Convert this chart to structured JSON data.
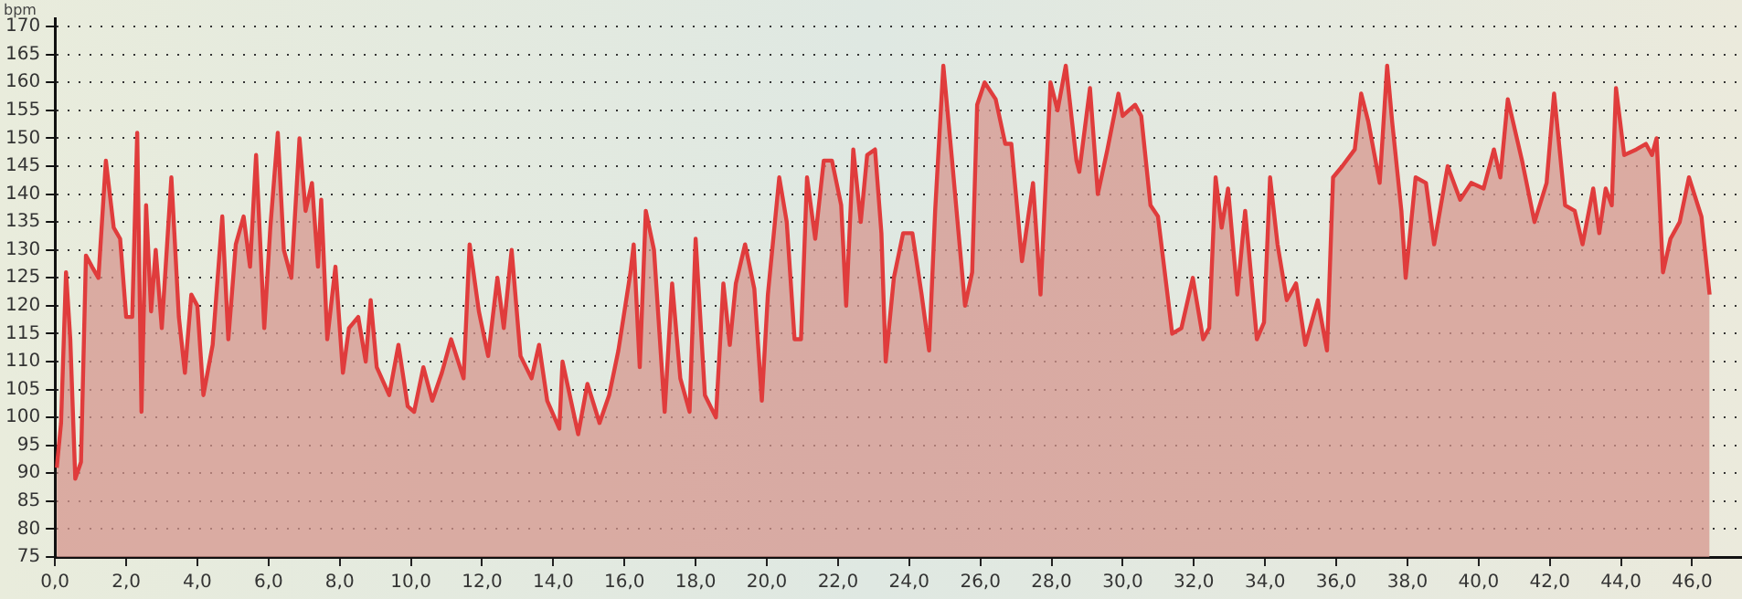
{
  "chart_data": {
    "type": "area",
    "ylabel": "bpm",
    "x": [
      0.05,
      0.17,
      0.31,
      0.43,
      0.57,
      0.73,
      0.87,
      1.04,
      1.22,
      1.43,
      1.65,
      1.83,
      2.0,
      2.17,
      2.31,
      2.43,
      2.56,
      2.7,
      2.83,
      3.0,
      3.27,
      3.48,
      3.65,
      3.83,
      4.0,
      4.17,
      4.43,
      4.7,
      4.87,
      5.08,
      5.3,
      5.48,
      5.65,
      5.88,
      6.05,
      6.26,
      6.43,
      6.64,
      6.87,
      7.04,
      7.22,
      7.39,
      7.48,
      7.65,
      7.88,
      8.09,
      8.26,
      8.52,
      8.73,
      8.87,
      9.04,
      9.39,
      9.65,
      9.91,
      10.09,
      10.35,
      10.6,
      10.87,
      11.13,
      11.48,
      11.65,
      11.91,
      12.17,
      12.43,
      12.61,
      12.83,
      13.08,
      13.39,
      13.6,
      13.83,
      14.17,
      14.26,
      14.7,
      14.96,
      15.3,
      15.57,
      15.83,
      16.17,
      16.26,
      16.43,
      16.6,
      16.83,
      17.13,
      17.34,
      17.57,
      17.83,
      18.0,
      18.26,
      18.57,
      18.78,
      18.96,
      19.13,
      19.39,
      19.65,
      19.86,
      20.03,
      20.35,
      20.56,
      20.78,
      20.96,
      21.13,
      21.36,
      21.6,
      21.83,
      22.09,
      22.23,
      22.43,
      22.64,
      22.82,
      23.04,
      23.22,
      23.34,
      23.57,
      23.83,
      24.09,
      24.35,
      24.56,
      24.73,
      24.96,
      25.22,
      25.57,
      25.77,
      25.91,
      26.12,
      26.43,
      26.7,
      26.87,
      27.17,
      27.48,
      27.69,
      27.97,
      28.17,
      28.4,
      28.7,
      28.78,
      29.08,
      29.3,
      29.57,
      29.88,
      30.0,
      30.17,
      30.35,
      30.52,
      30.78,
      30.99,
      31.22,
      31.39,
      31.65,
      31.97,
      32.26,
      32.43,
      32.61,
      32.78,
      32.96,
      33.22,
      33.44,
      33.77,
      33.97,
      34.14,
      34.35,
      34.61,
      34.87,
      35.13,
      35.48,
      35.74,
      35.91,
      36.17,
      36.52,
      36.7,
      36.9,
      37.22,
      37.43,
      37.57,
      37.83,
      37.95,
      38.23,
      38.52,
      38.75,
      39.13,
      39.48,
      39.79,
      40.14,
      40.43,
      40.61,
      40.82,
      41.22,
      41.57,
      41.91,
      42.12,
      42.43,
      42.7,
      42.92,
      43.22,
      43.39,
      43.57,
      43.74,
      43.86,
      44.09,
      44.43,
      44.7,
      44.87,
      45.0,
      45.18,
      45.39,
      45.65,
      45.91,
      46.26,
      46.49
    ],
    "series": [
      {
        "color": "#e03c3c",
        "values": [
          91,
          99,
          126,
          114,
          89,
          92,
          129,
          127,
          125,
          146,
          134,
          132,
          118,
          118,
          151,
          101,
          138,
          119,
          130,
          116,
          143,
          118,
          108,
          122,
          120,
          104,
          113,
          136,
          114,
          131,
          136,
          127,
          147,
          116,
          134,
          151,
          130,
          125,
          150,
          137,
          142,
          127,
          139,
          114,
          127,
          108,
          116,
          118,
          110,
          121,
          109,
          104,
          113,
          102,
          101,
          109,
          103,
          108,
          114,
          107,
          131,
          119,
          111,
          125,
          116,
          130,
          111,
          107,
          113,
          103,
          98,
          110,
          97,
          106,
          99,
          104,
          112,
          126,
          131,
          109,
          137,
          130,
          101,
          124,
          107,
          101,
          132,
          104,
          100,
          124,
          113,
          124,
          131,
          123,
          103,
          122,
          143,
          135,
          114,
          114,
          143,
          132,
          146,
          146,
          138,
          120,
          148,
          135,
          147,
          148,
          133,
          110,
          125,
          133,
          133,
          122,
          112,
          137,
          163,
          145,
          120,
          126,
          156,
          160,
          157,
          149,
          149,
          128,
          142,
          122,
          160,
          155,
          163,
          146,
          144,
          159,
          140,
          148,
          158,
          154,
          155,
          156,
          154,
          138,
          136,
          124,
          115,
          116,
          125,
          114,
          116,
          143,
          134,
          141,
          122,
          137,
          114,
          117,
          143,
          131,
          121,
          124,
          113,
          121,
          112,
          143,
          145,
          148,
          158,
          153,
          142,
          163,
          153,
          137,
          125,
          143,
          142,
          131,
          145,
          139,
          142,
          141,
          148,
          143,
          157,
          146,
          135,
          142,
          158,
          138,
          137,
          131,
          141,
          133,
          141,
          138,
          159,
          147,
          148,
          149,
          147,
          150,
          126,
          132,
          135,
          143,
          136,
          122
        ]
      }
    ],
    "xlim": [
      0,
      47.4
    ],
    "xticks": [
      {
        "value": 0,
        "label": "0,0"
      },
      {
        "value": 2,
        "label": "2,0"
      },
      {
        "value": 4,
        "label": "4,0"
      },
      {
        "value": 6,
        "label": "6,0"
      },
      {
        "value": 8,
        "label": "8,0"
      },
      {
        "value": 10,
        "label": "10,0"
      },
      {
        "value": 12,
        "label": "12,0"
      },
      {
        "value": 14,
        "label": "14,0"
      },
      {
        "value": 16,
        "label": "16,0"
      },
      {
        "value": 18,
        "label": "18,0"
      },
      {
        "value": 20,
        "label": "20,0"
      },
      {
        "value": 22,
        "label": "22,0"
      },
      {
        "value": 24,
        "label": "24,0"
      },
      {
        "value": 26,
        "label": "26,0"
      },
      {
        "value": 28,
        "label": "28,0"
      },
      {
        "value": 30,
        "label": "30,0"
      },
      {
        "value": 32,
        "label": "32,0"
      },
      {
        "value": 34,
        "label": "34,0"
      },
      {
        "value": 36,
        "label": "36,0"
      },
      {
        "value": 38,
        "label": "38,0"
      },
      {
        "value": 40,
        "label": "40,0"
      },
      {
        "value": 42,
        "label": "42,0"
      },
      {
        "value": 44,
        "label": "44,0"
      },
      {
        "value": 46,
        "label": "46,0"
      }
    ],
    "ylim": [
      75,
      171.5
    ],
    "yticks": [
      75,
      80,
      85,
      90,
      95,
      100,
      105,
      110,
      115,
      120,
      125,
      130,
      135,
      140,
      145,
      150,
      155,
      160,
      165,
      170
    ],
    "grid": "y",
    "legend": false,
    "marker": "none",
    "line_style": "solid"
  }
}
